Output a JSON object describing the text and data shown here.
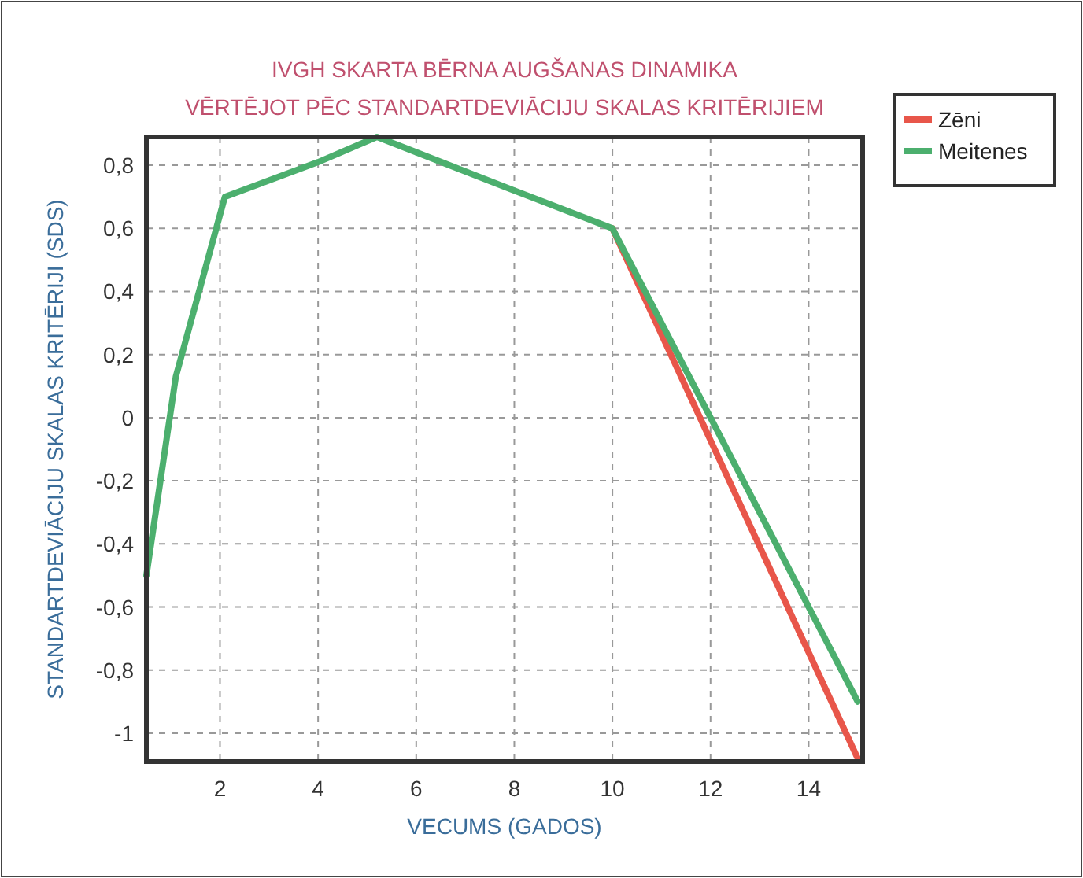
{
  "chart_data": {
    "type": "line",
    "title": "IVGH SKARTA BĒRNA AUGŠANAS DINAMIKA",
    "subtitle": "VĒRTĒJOT PĒC STANDARTDEVIĀCIJU SKALAS KRITĒRIJIEM",
    "xlabel": "VECUMS (GADOS)",
    "ylabel": "STANDARTDEVIĀCIJU SKALAS KRITĒRIJI (SDS)",
    "x": [
      0.5,
      1.1,
      2.1,
      4,
      5.2,
      8,
      10,
      15
    ],
    "series": [
      {
        "name": "Zēni",
        "color": "#e8564a",
        "values": [
          null,
          null,
          null,
          null,
          null,
          null,
          0.6,
          -1.08
        ]
      },
      {
        "name": "Meitenes",
        "color": "#4caf6e",
        "values": [
          -0.5,
          0.13,
          0.7,
          0.81,
          0.89,
          0.72,
          0.6,
          -0.9
        ]
      }
    ],
    "xlim": [
      0.5,
      15.1
    ],
    "ylim": [
      -1.09,
      0.89
    ],
    "xticks": [
      2,
      4,
      6,
      8,
      10,
      12,
      14
    ],
    "yticks": [
      {
        "value": 0.8,
        "label": "0,8"
      },
      {
        "value": 0.6,
        "label": "0,6"
      },
      {
        "value": 0.4,
        "label": "0,4"
      },
      {
        "value": 0.2,
        "label": "0,2"
      },
      0,
      {
        "value": -0.2,
        "label": "-0,2"
      },
      {
        "value": -0.4,
        "label": "-0,4"
      },
      {
        "value": -0.6,
        "label": "-0,6"
      },
      {
        "value": -0.8,
        "label": "-0,8"
      },
      -1
    ],
    "grid": true,
    "legend": "top right",
    "line_style": "solid"
  }
}
